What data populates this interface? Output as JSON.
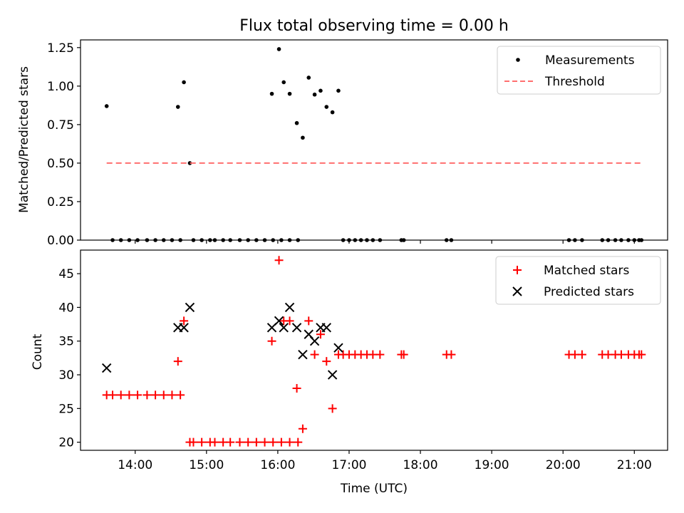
{
  "figure_title": "Flux total observing time = 0.00 h",
  "chart_data": [
    {
      "type": "scatter",
      "ylabel": "Matched/Predicted stars",
      "ylim": [
        0,
        1.3
      ],
      "yticks": [
        {
          "value": 0,
          "label": "0.00"
        },
        {
          "value": 0.25,
          "label": "0.25"
        },
        {
          "value": 0.5,
          "label": "0.50"
        },
        {
          "value": 0.75,
          "label": "0.75"
        },
        {
          "value": 1.0,
          "label": "1.00"
        },
        {
          "value": 1.25,
          "label": "1.25"
        }
      ],
      "xlim": [
        "13:14",
        "21:28"
      ],
      "legend_position": "top-right",
      "series": [
        {
          "name": "Measurements",
          "marker": "dot",
          "color": "#000000",
          "points": [
            [
              "13:36",
              0.87
            ],
            [
              "13:41",
              0
            ],
            [
              "13:48",
              0
            ],
            [
              "13:55",
              0
            ],
            [
              "14:02",
              0
            ],
            [
              "14:10",
              0
            ],
            [
              "14:17",
              0
            ],
            [
              "14:24",
              0
            ],
            [
              "14:31",
              0
            ],
            [
              "14:38",
              0
            ],
            [
              "14:36",
              0.865
            ],
            [
              "14:41",
              1.025
            ],
            [
              "14:46",
              0.5
            ],
            [
              "14:49",
              0
            ],
            [
              "14:56",
              0
            ],
            [
              "15:03",
              0
            ],
            [
              "15:07",
              0
            ],
            [
              "15:14",
              0
            ],
            [
              "15:20",
              0
            ],
            [
              "15:28",
              0
            ],
            [
              "15:35",
              0
            ],
            [
              "15:42",
              0
            ],
            [
              "15:49",
              0
            ],
            [
              "15:56",
              0
            ],
            [
              "16:03",
              0
            ],
            [
              "16:10",
              0
            ],
            [
              "16:17",
              0
            ],
            [
              "15:55",
              0.95
            ],
            [
              "16:01",
              1.24
            ],
            [
              "16:05",
              1.025
            ],
            [
              "16:10",
              0.95
            ],
            [
              "16:16",
              0.76
            ],
            [
              "16:21",
              0.665
            ],
            [
              "16:26",
              1.055
            ],
            [
              "16:31",
              0.945
            ],
            [
              "16:36",
              0.97
            ],
            [
              "16:41",
              0.865
            ],
            [
              "16:46",
              0.83
            ],
            [
              "16:51",
              0.97
            ],
            [
              "16:55",
              0
            ],
            [
              "17:00",
              0
            ],
            [
              "17:05",
              0
            ],
            [
              "17:10",
              0
            ],
            [
              "17:15",
              0
            ],
            [
              "17:20",
              0
            ],
            [
              "17:26",
              0
            ],
            [
              "17:44",
              0
            ],
            [
              "17:46",
              0
            ],
            [
              "18:22",
              0
            ],
            [
              "18:26",
              0
            ],
            [
              "20:05",
              0
            ],
            [
              "20:10",
              0
            ],
            [
              "20:16",
              0
            ],
            [
              "20:33",
              0
            ],
            [
              "20:38",
              0
            ],
            [
              "20:44",
              0
            ],
            [
              "20:49",
              0
            ],
            [
              "20:55",
              0
            ],
            [
              "21:00",
              0
            ],
            [
              "21:04",
              0
            ],
            [
              "21:06",
              0
            ]
          ]
        },
        {
          "name": "Threshold",
          "style": "dashed-line",
          "color": "#ff6f6f",
          "points": [
            [
              "13:36",
              0.5
            ],
            [
              "21:06",
              0.5
            ]
          ]
        }
      ]
    },
    {
      "type": "scatter",
      "ylabel": "Count",
      "xlabel": "Time (UTC)",
      "ylim": [
        18.8,
        48.5
      ],
      "yticks": [
        {
          "value": 20,
          "label": "20"
        },
        {
          "value": 25,
          "label": "25"
        },
        {
          "value": 30,
          "label": "30"
        },
        {
          "value": 35,
          "label": "35"
        },
        {
          "value": 40,
          "label": "40"
        },
        {
          "value": 45,
          "label": "45"
        }
      ],
      "xlim": [
        "13:14",
        "21:28"
      ],
      "xticks": [
        {
          "value": "14:00",
          "label": "14:00"
        },
        {
          "value": "15:00",
          "label": "15:00"
        },
        {
          "value": "16:00",
          "label": "16:00"
        },
        {
          "value": "17:00",
          "label": "17:00"
        },
        {
          "value": "18:00",
          "label": "18:00"
        },
        {
          "value": "19:00",
          "label": "19:00"
        },
        {
          "value": "20:00",
          "label": "20:00"
        },
        {
          "value": "21:00",
          "label": "21:00"
        }
      ],
      "legend_position": "top-right",
      "series": [
        {
          "name": "Matched stars",
          "marker": "plus",
          "color": "#ff0000",
          "points": [
            [
              "13:36",
              27
            ],
            [
              "13:41",
              27
            ],
            [
              "13:48",
              27
            ],
            [
              "13:55",
              27
            ],
            [
              "14:02",
              27
            ],
            [
              "14:10",
              27
            ],
            [
              "14:17",
              27
            ],
            [
              "14:24",
              27
            ],
            [
              "14:31",
              27
            ],
            [
              "14:38",
              27
            ],
            [
              "14:36",
              32
            ],
            [
              "14:41",
              38
            ],
            [
              "14:46",
              20
            ],
            [
              "14:49",
              20
            ],
            [
              "14:56",
              20
            ],
            [
              "15:03",
              20
            ],
            [
              "15:07",
              20
            ],
            [
              "15:14",
              20
            ],
            [
              "15:20",
              20
            ],
            [
              "15:28",
              20
            ],
            [
              "15:35",
              20
            ],
            [
              "15:42",
              20
            ],
            [
              "15:49",
              20
            ],
            [
              "15:56",
              20
            ],
            [
              "16:03",
              20
            ],
            [
              "16:10",
              20
            ],
            [
              "16:17",
              20
            ],
            [
              "15:55",
              35
            ],
            [
              "16:01",
              47
            ],
            [
              "16:05",
              38
            ],
            [
              "16:10",
              38
            ],
            [
              "16:16",
              28
            ],
            [
              "16:21",
              22
            ],
            [
              "16:26",
              38
            ],
            [
              "16:31",
              33
            ],
            [
              "16:36",
              36
            ],
            [
              "16:41",
              32
            ],
            [
              "16:46",
              25
            ],
            [
              "16:51",
              33
            ],
            [
              "16:55",
              33
            ],
            [
              "17:00",
              33
            ],
            [
              "17:05",
              33
            ],
            [
              "17:10",
              33
            ],
            [
              "17:15",
              33
            ],
            [
              "17:20",
              33
            ],
            [
              "17:26",
              33
            ],
            [
              "17:44",
              33
            ],
            [
              "17:46",
              33
            ],
            [
              "18:22",
              33
            ],
            [
              "18:26",
              33
            ],
            [
              "20:05",
              33
            ],
            [
              "20:10",
              33
            ],
            [
              "20:16",
              33
            ],
            [
              "20:33",
              33
            ],
            [
              "20:38",
              33
            ],
            [
              "20:44",
              33
            ],
            [
              "20:49",
              33
            ],
            [
              "20:55",
              33
            ],
            [
              "21:00",
              33
            ],
            [
              "21:04",
              33
            ],
            [
              "21:06",
              33
            ]
          ]
        },
        {
          "name": "Predicted stars",
          "marker": "x",
          "color": "#000000",
          "points": [
            [
              "13:36",
              31
            ],
            [
              "14:36",
              37
            ],
            [
              "14:41",
              37
            ],
            [
              "14:46",
              40
            ],
            [
              "15:55",
              37
            ],
            [
              "16:01",
              38
            ],
            [
              "16:05",
              37
            ],
            [
              "16:10",
              40
            ],
            [
              "16:16",
              37
            ],
            [
              "16:21",
              33
            ],
            [
              "16:26",
              36
            ],
            [
              "16:31",
              35
            ],
            [
              "16:36",
              37
            ],
            [
              "16:41",
              37
            ],
            [
              "16:46",
              30
            ],
            [
              "16:51",
              34
            ]
          ]
        }
      ]
    }
  ]
}
